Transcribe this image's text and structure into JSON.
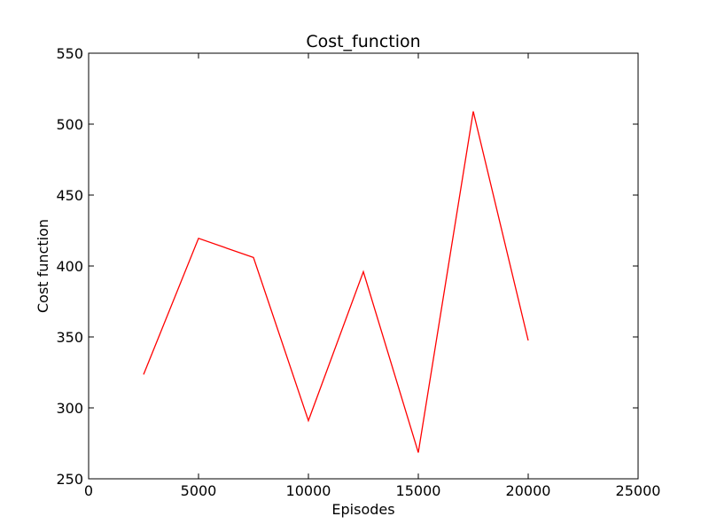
{
  "chart_data": {
    "type": "line",
    "title": "Cost_function",
    "xlabel": "Episodes",
    "ylabel": "Cost function",
    "xlim": [
      0,
      25000
    ],
    "ylim": [
      250,
      550
    ],
    "xticks": [
      0,
      5000,
      10000,
      15000,
      20000,
      25000
    ],
    "yticks": [
      250,
      300,
      350,
      400,
      450,
      500,
      550
    ],
    "grid": false,
    "series": [
      {
        "color": "#ff0000",
        "x": [
          2500,
          5000,
          7500,
          10000,
          12500,
          15000,
          17500,
          20000
        ],
        "y": [
          323.5,
          419.5,
          406,
          291,
          396,
          268.5,
          509,
          347.5
        ]
      }
    ]
  }
}
